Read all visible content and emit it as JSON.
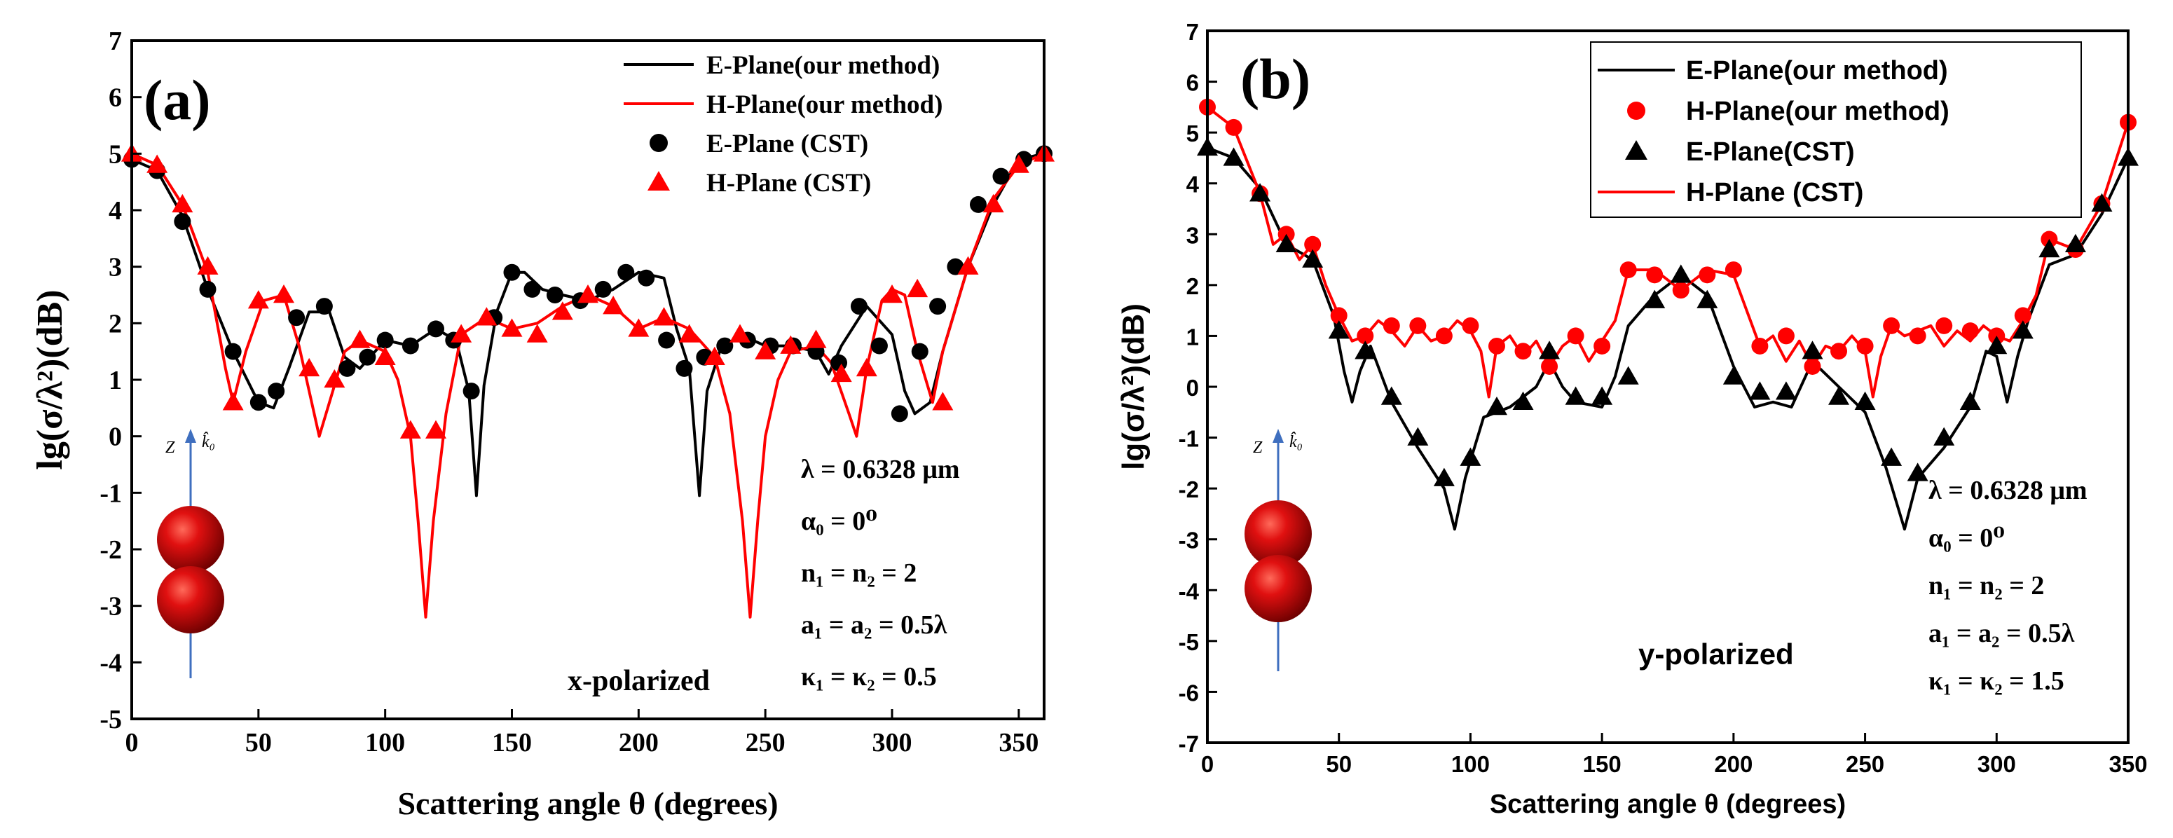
{
  "figure": {
    "colors": {
      "e_plane": "#000000",
      "h_plane": "#ff0000",
      "axis_arrow": "#3f6fbf",
      "sphere": "#c00000"
    },
    "panels": [
      {
        "id": "a",
        "label": "(a)",
        "polarization": "x-polarized",
        "params": [
          "λ = 0.6328 μm",
          "α₀ = 0⁰",
          "n₁ = n₂ = 2",
          "a₁ = a₂ = 0.5λ",
          "κ₁ = κ₂ = 0.5"
        ],
        "inset": {
          "axis_label": "Z",
          "vector_label": "k̂₀",
          "icon": "dimer-spheres-icon"
        }
      },
      {
        "id": "b",
        "label": "(b)",
        "polarization": "y-polarized",
        "params": [
          "λ = 0.6328 μm",
          "α₀ = 0⁰",
          "n₁ = n₂ = 2",
          "a₁ = a₂ = 0.5λ",
          "κ₁ = κ₂ = 1.5"
        ],
        "inset": {
          "axis_label": "Z",
          "vector_label": "k̂₀",
          "icon": "dimer-spheres-icon"
        }
      }
    ]
  },
  "chart_data": [
    {
      "type": "line",
      "panel": "a",
      "title": "",
      "xlabel": "Scattering angle θ (degrees)",
      "ylabel": "lg(σ/λ²)(dB)",
      "xlim": [
        0,
        360
      ],
      "ylim": [
        -5,
        7
      ],
      "xticks": [
        0,
        50,
        100,
        150,
        200,
        250,
        300,
        350
      ],
      "yticks": [
        -5,
        -4,
        -3,
        -2,
        -1,
        0,
        1,
        2,
        3,
        4,
        5,
        6,
        7
      ],
      "legend_position": "top-right",
      "series": [
        {
          "name": "E-Plane(our method)",
          "style": "line",
          "color": "#000000",
          "x": [
            0,
            10,
            20,
            30,
            40,
            50,
            56,
            62,
            70,
            78,
            84,
            90,
            100,
            110,
            120,
            128,
            133,
            136,
            139,
            144,
            150,
            155,
            162,
            170,
            180,
            190,
            200,
            210,
            215,
            220,
            224,
            227,
            232,
            240,
            250,
            260,
            270,
            275,
            280,
            290,
            300,
            305,
            309,
            315,
            320,
            330,
            340,
            350,
            360
          ],
          "y": [
            4.9,
            4.7,
            3.9,
            2.6,
            1.5,
            0.6,
            0.5,
            1.2,
            2.2,
            2.2,
            1.4,
            1.2,
            1.7,
            1.6,
            1.9,
            1.7,
            0.8,
            -1.05,
            0.9,
            2.2,
            2.9,
            2.9,
            2.6,
            2.5,
            2.4,
            2.6,
            2.9,
            2.8,
            1.9,
            1.2,
            -1.05,
            0.8,
            1.5,
            1.8,
            1.6,
            1.6,
            1.5,
            1.1,
            1.6,
            2.3,
            1.8,
            0.8,
            0.4,
            0.6,
            1.5,
            3.0,
            4.1,
            4.9,
            5.0
          ]
        },
        {
          "name": "H-Plane(our method)",
          "style": "line",
          "color": "#ff0000",
          "x": [
            0,
            10,
            20,
            30,
            37,
            40,
            45,
            52,
            60,
            66,
            71,
            74,
            78,
            84,
            90,
            100,
            105,
            110,
            113,
            116,
            119,
            124,
            130,
            140,
            150,
            160,
            170,
            180,
            190,
            200,
            210,
            220,
            230,
            236,
            241,
            244,
            247,
            250,
            255,
            260,
            270,
            276,
            283,
            286,
            290,
            296,
            300,
            305,
            310,
            316,
            320,
            330,
            340,
            350,
            360
          ],
          "y": [
            5.0,
            4.8,
            4.1,
            2.9,
            1.2,
            0.6,
            1.5,
            2.4,
            2.5,
            1.6,
            0.6,
            0.0,
            0.6,
            1.5,
            1.7,
            1.5,
            1.0,
            0.0,
            -1.5,
            -3.2,
            -1.5,
            0.4,
            1.8,
            2.1,
            1.9,
            2.0,
            2.3,
            2.5,
            2.3,
            1.9,
            2.1,
            1.9,
            1.4,
            0.4,
            -1.5,
            -3.2,
            -1.5,
            0.0,
            1.0,
            1.5,
            1.6,
            1.3,
            0.4,
            0.0,
            1.2,
            2.4,
            2.6,
            2.5,
            1.5,
            0.6,
            1.5,
            3.0,
            4.2,
            4.8,
            5.0
          ]
        },
        {
          "name": "E-Plane (CST)",
          "style": "marker",
          "marker": "circle",
          "color": "#000000",
          "x": [
            0,
            10,
            20,
            30,
            40,
            50,
            57,
            65,
            76,
            85,
            93,
            100,
            110,
            120,
            127,
            134,
            143,
            150,
            158,
            167,
            177,
            186,
            195,
            203,
            211,
            218,
            226,
            234,
            243,
            252,
            261,
            270,
            279,
            287,
            295,
            303,
            311,
            318,
            325,
            334,
            343,
            352,
            360
          ],
          "y": [
            4.9,
            4.7,
            3.8,
            2.6,
            1.5,
            0.6,
            0.8,
            2.1,
            2.3,
            1.2,
            1.4,
            1.7,
            1.6,
            1.9,
            1.7,
            0.8,
            2.1,
            2.9,
            2.6,
            2.5,
            2.4,
            2.6,
            2.9,
            2.8,
            1.7,
            1.2,
            1.4,
            1.6,
            1.7,
            1.6,
            1.6,
            1.5,
            1.3,
            2.3,
            1.6,
            0.4,
            1.5,
            2.3,
            3.0,
            4.1,
            4.6,
            4.9,
            5.0
          ]
        },
        {
          "name": "H-Plane (CST)",
          "style": "marker",
          "marker": "triangle",
          "color": "#ff0000",
          "x": [
            0,
            10,
            20,
            30,
            40,
            50,
            60,
            70,
            80,
            90,
            100,
            110,
            120,
            130,
            140,
            150,
            160,
            170,
            180,
            190,
            200,
            210,
            220,
            230,
            240,
            250,
            260,
            270,
            280,
            290,
            300,
            310,
            320,
            330,
            340,
            350,
            360
          ],
          "y": [
            5.0,
            4.8,
            4.1,
            3.0,
            0.6,
            2.4,
            2.5,
            1.2,
            1.0,
            1.7,
            1.4,
            0.1,
            0.1,
            1.8,
            2.1,
            1.9,
            1.8,
            2.2,
            2.5,
            2.3,
            1.9,
            2.1,
            1.8,
            1.4,
            1.8,
            1.5,
            1.6,
            1.7,
            1.1,
            1.2,
            2.5,
            2.6,
            0.6,
            3.0,
            4.1,
            4.8,
            5.0
          ]
        }
      ]
    },
    {
      "type": "line",
      "panel": "b",
      "title": "",
      "xlabel": "Scattering angle θ (degrees)",
      "ylabel": "lg(σ/λ²)(dB)",
      "xlim": [
        0,
        350
      ],
      "ylim": [
        -7,
        7
      ],
      "xticks": [
        0,
        50,
        100,
        150,
        200,
        250,
        300,
        350
      ],
      "yticks": [
        -7,
        -6,
        -5,
        -4,
        -3,
        -2,
        -1,
        0,
        1,
        2,
        3,
        4,
        5,
        6,
        7
      ],
      "legend_position": "top-right",
      "series": [
        {
          "name": "E-Plane(our method)",
          "style": "line",
          "color": "#000000",
          "x": [
            0,
            10,
            20,
            30,
            40,
            48,
            52,
            55,
            58,
            62,
            70,
            80,
            90,
            94,
            98,
            105,
            115,
            125,
            130,
            135,
            140,
            150,
            155,
            160,
            170,
            180,
            190,
            200,
            208,
            215,
            222,
            230,
            240,
            250,
            258,
            265,
            270,
            280,
            290,
            296,
            300,
            304,
            308,
            312,
            320,
            330,
            340,
            350
          ],
          "y": [
            4.7,
            4.5,
            3.9,
            2.8,
            2.5,
            1.4,
            0.3,
            -0.3,
            0.3,
            0.8,
            -0.3,
            -1.2,
            -2.0,
            -2.8,
            -1.8,
            -0.6,
            -0.4,
            0.0,
            0.5,
            0.0,
            -0.3,
            -0.4,
            0.2,
            1.2,
            1.8,
            2.2,
            1.8,
            0.4,
            -0.4,
            -0.3,
            -0.4,
            0.5,
            0.0,
            -0.5,
            -1.6,
            -2.8,
            -1.8,
            -1.2,
            -0.4,
            0.7,
            0.6,
            -0.3,
            0.6,
            1.3,
            2.4,
            2.6,
            3.4,
            4.5
          ]
        },
        {
          "name": "H-Plane(our method)",
          "style": "marker",
          "marker": "circle",
          "color": "#ff0000",
          "x": [
            0,
            10,
            20,
            30,
            40,
            50,
            60,
            70,
            80,
            90,
            100,
            110,
            120,
            130,
            140,
            150,
            160,
            170,
            180,
            190,
            200,
            210,
            220,
            230,
            240,
            250,
            260,
            270,
            280,
            290,
            300,
            310,
            320,
            330,
            340,
            350
          ],
          "y": [
            5.5,
            5.1,
            3.8,
            3.0,
            2.8,
            1.4,
            1.0,
            1.2,
            1.2,
            1.0,
            1.2,
            0.8,
            0.7,
            0.4,
            1.0,
            0.8,
            2.3,
            2.2,
            1.9,
            2.2,
            2.3,
            0.8,
            1.0,
            0.4,
            0.7,
            0.8,
            1.2,
            1.0,
            1.2,
            1.1,
            1.0,
            1.4,
            2.9,
            2.7,
            3.6,
            5.2
          ]
        },
        {
          "name": "E-Plane(CST)",
          "style": "marker",
          "marker": "triangle",
          "color": "#000000",
          "x": [
            0,
            10,
            20,
            30,
            40,
            50,
            60,
            70,
            80,
            90,
            100,
            110,
            120,
            130,
            140,
            150,
            160,
            170,
            180,
            190,
            200,
            210,
            220,
            230,
            240,
            250,
            260,
            270,
            280,
            290,
            300,
            310,
            320,
            330,
            340,
            350
          ],
          "y": [
            4.7,
            4.5,
            3.8,
            2.8,
            2.5,
            1.1,
            0.7,
            -0.2,
            -1.0,
            -1.8,
            -1.4,
            -0.4,
            -0.3,
            0.7,
            -0.2,
            -0.2,
            0.2,
            1.7,
            2.2,
            1.7,
            0.2,
            -0.1,
            -0.1,
            0.7,
            -0.2,
            -0.3,
            -1.4,
            -1.7,
            -1.0,
            -0.3,
            0.8,
            1.1,
            2.7,
            2.8,
            3.6,
            4.5
          ]
        },
        {
          "name": "H-Plane (CST)",
          "style": "line",
          "color": "#ff0000",
          "x": [
            0,
            10,
            20,
            25,
            30,
            35,
            40,
            45,
            50,
            55,
            60,
            65,
            70,
            75,
            80,
            85,
            90,
            95,
            100,
            104,
            107,
            110,
            115,
            120,
            125,
            130,
            135,
            140,
            145,
            150,
            155,
            160,
            170,
            180,
            190,
            200,
            205,
            210,
            215,
            220,
            225,
            230,
            235,
            240,
            245,
            250,
            253,
            256,
            260,
            265,
            270,
            275,
            280,
            285,
            290,
            295,
            300,
            305,
            310,
            315,
            320,
            330,
            340,
            350
          ],
          "y": [
            5.5,
            5.1,
            3.8,
            2.8,
            3.0,
            2.5,
            2.8,
            2.0,
            1.4,
            0.9,
            1.0,
            1.3,
            1.1,
            0.8,
            1.2,
            0.9,
            1.0,
            1.3,
            1.1,
            0.7,
            -0.2,
            0.8,
            1.0,
            0.6,
            0.9,
            0.4,
            0.8,
            1.0,
            0.5,
            0.9,
            1.3,
            2.3,
            2.3,
            1.9,
            2.3,
            2.2,
            1.5,
            0.8,
            1.0,
            0.5,
            0.9,
            0.4,
            0.8,
            0.7,
            1.0,
            0.7,
            -0.2,
            0.6,
            1.2,
            1.0,
            1.1,
            1.2,
            0.8,
            1.1,
            0.9,
            1.2,
            1.0,
            0.9,
            1.3,
            1.8,
            2.9,
            2.7,
            3.6,
            5.2
          ]
        }
      ]
    }
  ]
}
